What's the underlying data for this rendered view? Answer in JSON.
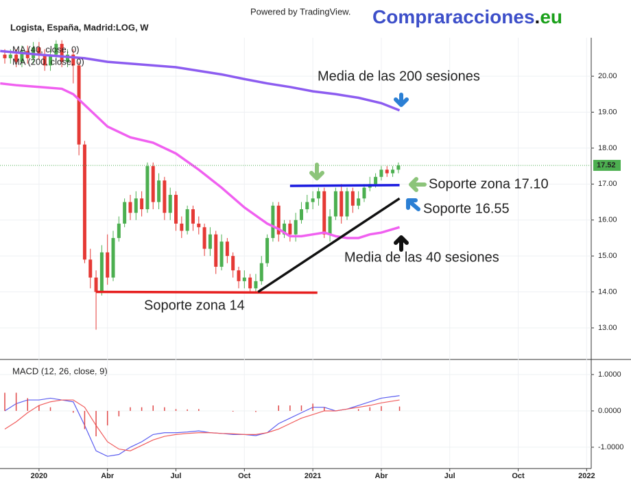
{
  "header": {
    "powered": "Powered by TradingView.",
    "brand": [
      "Compraracciones",
      ".",
      "eu"
    ],
    "brand_colors": [
      "#3d4fc9",
      "#111111",
      "#1aa01a"
    ]
  },
  "chart_data": [
    {
      "type": "candlestick",
      "title": "Logista, España, Madrid:LOG, W",
      "xlim": [
        -1.71,
        24.2
      ],
      "ylim": [
        12.16,
        21.07
      ],
      "yticks": [
        {
          "value": 13,
          "label": "13.00"
        },
        {
          "value": 14,
          "label": "14.00"
        },
        {
          "value": 15,
          "label": "15.00"
        },
        {
          "value": 16,
          "label": "16.00"
        },
        {
          "value": 17,
          "label": "17.00"
        },
        {
          "value": 18,
          "label": "18.00"
        },
        {
          "value": 19,
          "label": "19.00"
        },
        {
          "value": 20,
          "label": "20.00"
        }
      ],
      "grid": true,
      "up_color": "#4caf50",
      "down_color": "#e53935",
      "x": [
        -1.5,
        -1.25,
        -1,
        -0.75,
        -0.5,
        -0.25,
        0,
        0.25,
        0.5,
        0.75,
        1,
        1.25,
        1.5,
        1.75,
        2,
        2.25,
        2.5,
        2.75,
        3,
        3.25,
        3.5,
        3.75,
        4,
        4.25,
        4.5,
        4.75,
        5,
        5.25,
        5.5,
        5.75,
        6,
        6.25,
        6.5,
        6.75,
        7,
        7.25,
        7.5,
        7.75,
        8,
        8.25,
        8.5,
        8.75,
        9,
        9.25,
        9.5,
        9.75,
        10,
        10.25,
        10.5,
        10.75,
        11,
        11.25,
        11.5,
        11.75,
        12,
        12.25,
        12.5,
        12.75,
        13,
        13.25,
        13.5,
        13.75,
        14,
        14.25,
        14.5,
        14.75,
        15,
        15.25,
        15.5,
        15.75
      ],
      "open": [
        20.6,
        20.5,
        20.6,
        20.4,
        20.7,
        20.5,
        20.8,
        20.6,
        20.3,
        20.6,
        20.9,
        20.4,
        20.6,
        20.3,
        18.1,
        14.9,
        14.4,
        14.0,
        15.1,
        14.4,
        15.5,
        15.9,
        16.5,
        16.2,
        16.6,
        16.3,
        17.5,
        16.5,
        17.1,
        16.2,
        16.7,
        15.9,
        15.7,
        16.3,
        15.9,
        15.8,
        15.2,
        15.6,
        14.7,
        15.4,
        15.0,
        14.6,
        14.3,
        14.4,
        14.1,
        14.3,
        14.8,
        15.5,
        16.4,
        15.6,
        15.9,
        15.6,
        16.0,
        16.3,
        16.5,
        16.6,
        16.8,
        15.6,
        16.1,
        16.8,
        16.1,
        16.8,
        16.4,
        16.6,
        16.9,
        17.0,
        17.2,
        17.4,
        17.3,
        17.4
      ],
      "high": [
        20.75,
        20.75,
        20.75,
        20.85,
        20.85,
        20.95,
        20.95,
        20.75,
        20.75,
        21.0,
        21.0,
        20.75,
        20.75,
        20.4,
        18.2,
        15.2,
        14.6,
        15.3,
        15.6,
        15.7,
        16.1,
        16.6,
        16.7,
        16.8,
        16.8,
        17.6,
        17.6,
        17.3,
        17.2,
        16.9,
        16.8,
        16.1,
        16.4,
        16.4,
        16.1,
        15.9,
        15.8,
        15.7,
        15.6,
        15.5,
        15.1,
        14.7,
        14.6,
        14.5,
        14.5,
        15.0,
        15.6,
        16.5,
        16.5,
        16.0,
        16.0,
        16.2,
        16.5,
        16.7,
        16.8,
        16.9,
        16.9,
        16.3,
        16.9,
        17.0,
        16.9,
        16.9,
        16.8,
        17.0,
        17.2,
        17.3,
        17.5,
        17.5,
        17.5,
        17.6
      ],
      "low": [
        20.35,
        20.35,
        20.25,
        20.25,
        20.35,
        20.35,
        20.45,
        20.15,
        20.15,
        20.45,
        20.25,
        20.25,
        19.8,
        17.8,
        14.8,
        14.1,
        12.95,
        13.9,
        14.2,
        14.3,
        15.4,
        15.8,
        16.0,
        16.0,
        16.1,
        16.2,
        16.3,
        16.3,
        16.0,
        16.0,
        15.7,
        15.5,
        15.6,
        15.7,
        15.6,
        15.0,
        15.0,
        14.5,
        14.6,
        14.8,
        14.4,
        14.1,
        14.1,
        14.0,
        14.0,
        14.2,
        14.7,
        15.4,
        15.4,
        15.5,
        15.4,
        15.4,
        15.9,
        16.2,
        16.3,
        16.4,
        15.5,
        15.4,
        16.0,
        15.9,
        16.0,
        16.2,
        16.3,
        16.5,
        16.8,
        16.9,
        17.1,
        17.2,
        17.2,
        17.3
      ],
      "close": [
        20.5,
        20.6,
        20.4,
        20.7,
        20.5,
        20.8,
        20.6,
        20.3,
        20.6,
        20.9,
        20.4,
        20.6,
        20.3,
        18.1,
        14.9,
        14.4,
        14.0,
        15.1,
        14.4,
        15.5,
        15.9,
        16.5,
        16.2,
        16.6,
        16.3,
        17.5,
        16.5,
        17.1,
        16.2,
        16.7,
        15.9,
        15.7,
        16.3,
        15.9,
        15.8,
        15.2,
        15.6,
        14.7,
        15.4,
        15.0,
        14.6,
        14.3,
        14.4,
        14.1,
        14.3,
        14.8,
        15.5,
        16.4,
        15.6,
        15.9,
        15.6,
        16.0,
        16.3,
        16.5,
        16.6,
        16.8,
        15.6,
        16.1,
        16.8,
        16.1,
        16.8,
        16.4,
        16.6,
        16.9,
        17.0,
        17.2,
        17.4,
        17.3,
        17.4,
        17.52
      ],
      "last_price": 17.52,
      "last_color": "#4caf50",
      "series": [
        {
          "name": "MA (40, close, 0)",
          "color": "#f060f0",
          "x": [
            -1.7,
            -1,
            0,
            1,
            1.5,
            2,
            3,
            4,
            5,
            6,
            7,
            8,
            9,
            10,
            10.5,
            11,
            11.5,
            12,
            12.5,
            13,
            13.5,
            14,
            14.5,
            15,
            15.8
          ],
          "values": [
            19.8,
            19.75,
            19.7,
            19.65,
            19.5,
            19.2,
            18.6,
            18.3,
            18.15,
            17.85,
            17.4,
            16.9,
            16.35,
            15.9,
            15.75,
            15.55,
            15.55,
            15.6,
            15.65,
            15.55,
            15.5,
            15.5,
            15.6,
            15.65,
            15.8
          ]
        },
        {
          "name": "MA (200, close, 0)",
          "color": "#8c5cf0",
          "x": [
            -1.7,
            0,
            1,
            2,
            3,
            4,
            5,
            6,
            7,
            8,
            9,
            10,
            11,
            12,
            13,
            14,
            15,
            15.8
          ],
          "values": [
            20.7,
            20.6,
            20.55,
            20.5,
            20.4,
            20.35,
            20.3,
            20.25,
            20.15,
            20.05,
            19.92,
            19.8,
            19.7,
            19.58,
            19.5,
            19.4,
            19.25,
            19.05
          ]
        }
      ],
      "drawings": [
        {
          "color": "#e61e1e",
          "x": [
            2.5,
            12.2
          ],
          "y": [
            14.0,
            13.98
          ]
        },
        {
          "color": "#1a1ae0",
          "x": [
            11.0,
            15.8
          ],
          "y": [
            16.95,
            16.97
          ]
        },
        {
          "color": "#111111",
          "x": [
            9.6,
            15.8
          ],
          "y": [
            14.0,
            16.6
          ]
        }
      ],
      "annotations": [
        {
          "text": "Media de las 200 sesiones",
          "color": "#222222"
        },
        {
          "text": "Soporte zona 17.10",
          "color": "#f39c12"
        },
        {
          "text": "Soporte 16.55",
          "color": "#f39c12"
        },
        {
          "text": "Media de las 40 sesiones",
          "color": "#111111"
        },
        {
          "text": "Soporte zona 14",
          "color": "#e61e1e"
        }
      ]
    },
    {
      "type": "macd",
      "title": "MACD (12, 26, close, 9)",
      "xlim": [
        -1.71,
        24.2
      ],
      "ylim": [
        -1.53,
        1.34
      ],
      "yticks": [
        {
          "value": -1,
          "label": "-1.0000"
        },
        {
          "value": 0,
          "label": "0.0000"
        },
        {
          "value": 1,
          "label": "1.0000"
        }
      ],
      "xticks": [
        {
          "value": 0,
          "label": "2020"
        },
        {
          "value": 3,
          "label": "Abr"
        },
        {
          "value": 6,
          "label": "Jul"
        },
        {
          "value": 9,
          "label": "Oct"
        },
        {
          "value": 12,
          "label": "2021"
        },
        {
          "value": 15,
          "label": "Abr"
        },
        {
          "value": 18,
          "label": "Jul"
        },
        {
          "value": 21,
          "label": "Oct"
        },
        {
          "value": 24,
          "label": "2022"
        }
      ],
      "x": [
        -1.5,
        -1,
        -0.5,
        0,
        0.5,
        1,
        1.5,
        2,
        2.5,
        3,
        3.5,
        4,
        4.5,
        5,
        5.5,
        6,
        6.5,
        7,
        7.5,
        8,
        8.5,
        9,
        9.5,
        10,
        10.5,
        11,
        11.5,
        12,
        12.5,
        13,
        13.5,
        14,
        14.5,
        15,
        15.8
      ],
      "series": [
        {
          "color": "#5a5cf0",
          "values": [
            0.0,
            0.2,
            0.3,
            0.3,
            0.35,
            0.3,
            0.25,
            -0.4,
            -1.1,
            -1.25,
            -1.2,
            -1.0,
            -0.85,
            -0.65,
            -0.6,
            -0.6,
            -0.58,
            -0.55,
            -0.6,
            -0.62,
            -0.65,
            -0.65,
            -0.68,
            -0.6,
            -0.35,
            -0.2,
            -0.05,
            0.1,
            0.1,
            0.0,
            0.05,
            0.15,
            0.25,
            0.35,
            0.42
          ]
        },
        {
          "color": "#f05a5a",
          "values": [
            -0.5,
            -0.3,
            -0.05,
            0.15,
            0.25,
            0.3,
            0.3,
            0.1,
            -0.4,
            -0.85,
            -1.05,
            -1.1,
            -0.95,
            -0.8,
            -0.7,
            -0.65,
            -0.62,
            -0.6,
            -0.6,
            -0.62,
            -0.63,
            -0.65,
            -0.65,
            -0.6,
            -0.5,
            -0.35,
            -0.2,
            -0.1,
            0.0,
            0.0,
            0.05,
            0.1,
            0.15,
            0.22,
            0.3
          ]
        },
        {
          "color": "#e04848",
          "style": "histogram",
          "values": [
            0.5,
            0.5,
            0.35,
            0.15,
            0.1,
            0,
            -0.05,
            -0.5,
            -0.7,
            -0.4,
            -0.15,
            0.1,
            0.1,
            0.15,
            0.1,
            0.05,
            0.04,
            0.05,
            0,
            0,
            -0.02,
            0,
            -0.03,
            0,
            0.15,
            0.15,
            0.15,
            0.2,
            0.1,
            0,
            0,
            0.05,
            0.1,
            0.13,
            0.12
          ]
        }
      ]
    }
  ]
}
